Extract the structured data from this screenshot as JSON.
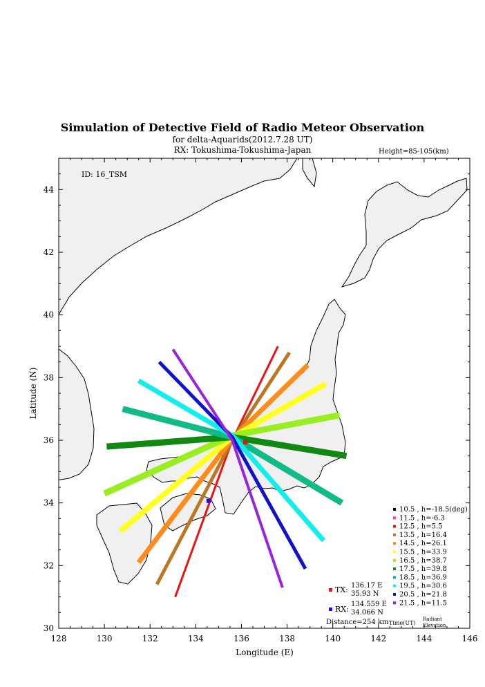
{
  "header": {
    "title": "Simulation of Detective Field of Radio Meteor Observation",
    "subtitle": "for delta-Aquarids(2012.7.28 UT)",
    "rx_location": "RX: Tokushima-Tokushima-Japan",
    "height": "Height=85-105(km)"
  },
  "map": {
    "id_label": "ID: 16_TSM",
    "xlabel": "Longitude (E)",
    "ylabel": "Latitude (N)",
    "xlim": [
      128,
      146
    ],
    "ylim": [
      30,
      45
    ],
    "xticks": [
      128,
      130,
      132,
      134,
      136,
      138,
      140,
      142,
      144,
      146
    ],
    "yticks": [
      30,
      32,
      34,
      36,
      38,
      40,
      42,
      44
    ],
    "land_color": "#f0f0f0",
    "coast_color": "#000000"
  },
  "chart_data": {
    "type": "scatter",
    "title": "Simulation of Detective Field of Radio Meteor Observation",
    "xlabel": "Longitude (E)",
    "ylabel": "Latitude (N)",
    "xlim": [
      128,
      146
    ],
    "ylim": [
      30,
      45
    ],
    "legend_position": "bottom-right",
    "center": {
      "lon": 135.6,
      "lat": 36.15
    },
    "series": [
      {
        "name": "10.5 ,  h=-18.5(deg)",
        "color": "#000000",
        "start": [
          135.6,
          36.15
        ],
        "end": [
          135.6,
          36.15
        ],
        "width": 1
      },
      {
        "name": "11.5 ,  h=-6.3",
        "color": "#ff33cc",
        "start": [
          135.7,
          35.9
        ],
        "end": [
          135.9,
          35.3
        ],
        "width": 2
      },
      {
        "name": "12.5 ,  h=5.5",
        "color": "#ee1111",
        "points": [
          [
            133.1,
            31.0
          ],
          [
            135.6,
            36.0
          ],
          [
            137.6,
            39.0
          ]
        ],
        "width": 3
      },
      {
        "name": "13.5 ,  h=16.4",
        "color": "#bb7722",
        "points": [
          [
            132.3,
            31.4
          ],
          [
            135.6,
            36.0
          ],
          [
            138.1,
            38.8
          ]
        ],
        "width": 5
      },
      {
        "name": "14.5 ,  h=26.1",
        "color": "#ff8c1a",
        "points": [
          [
            131.5,
            32.1
          ],
          [
            135.6,
            36.05
          ],
          [
            138.9,
            38.4
          ]
        ],
        "width": 7
      },
      {
        "name": "15.5 ,  h=33.9",
        "color": "#ffff22",
        "points": [
          [
            130.7,
            33.1
          ],
          [
            135.6,
            36.1
          ],
          [
            139.7,
            37.8
          ]
        ],
        "width": 8
      },
      {
        "name": "16.5 ,  h=38.7",
        "color": "#99ee22",
        "points": [
          [
            130.0,
            34.3
          ],
          [
            135.6,
            36.15
          ],
          [
            140.3,
            36.8
          ]
        ],
        "width": 9
      },
      {
        "name": "17.5 ,  h=39.8",
        "color": "#118811",
        "points": [
          [
            130.1,
            35.8
          ],
          [
            135.6,
            36.1
          ],
          [
            140.6,
            35.5
          ]
        ],
        "width": 9
      },
      {
        "name": "18.5 ,  h=36.9",
        "color": "#11bb88",
        "points": [
          [
            130.8,
            37.0
          ],
          [
            135.6,
            36.1
          ],
          [
            140.4,
            34.0
          ]
        ],
        "width": 9
      },
      {
        "name": "19.5 ,  h=30.6",
        "color": "#11eeee",
        "points": [
          [
            131.5,
            37.9
          ],
          [
            135.6,
            36.15
          ],
          [
            139.6,
            32.8
          ]
        ],
        "width": 7
      },
      {
        "name": "20.5 ,  h=21.8",
        "color": "#1111cc",
        "points": [
          [
            132.4,
            38.5
          ],
          [
            135.6,
            36.1
          ],
          [
            138.8,
            31.9
          ]
        ],
        "width": 5
      },
      {
        "name": "21.5 ,  h=11.5",
        "color": "#9922dd",
        "points": [
          [
            133.0,
            38.9
          ],
          [
            135.6,
            36.0
          ],
          [
            137.8,
            31.3
          ]
        ],
        "width": 4
      }
    ],
    "stations": [
      {
        "name": "TX",
        "color": "#ee1111",
        "lon": 136.17,
        "lat": 35.93
      },
      {
        "name": "RX",
        "color": "#1111ee",
        "lon": 134.559,
        "lat": 34.066
      }
    ]
  },
  "legend": {
    "time_label": "Time(UT)",
    "radiant_label": "Radiant",
    "elevation_label": "Elevation"
  },
  "info": {
    "tx_label": "TX:",
    "tx_lon": "136.17 E",
    "tx_lat": "35.93 N",
    "rx_label": "RX:",
    "rx_lon": "134.559 E",
    "rx_lat": "34.066 N",
    "distance": "Distance=254 km"
  }
}
